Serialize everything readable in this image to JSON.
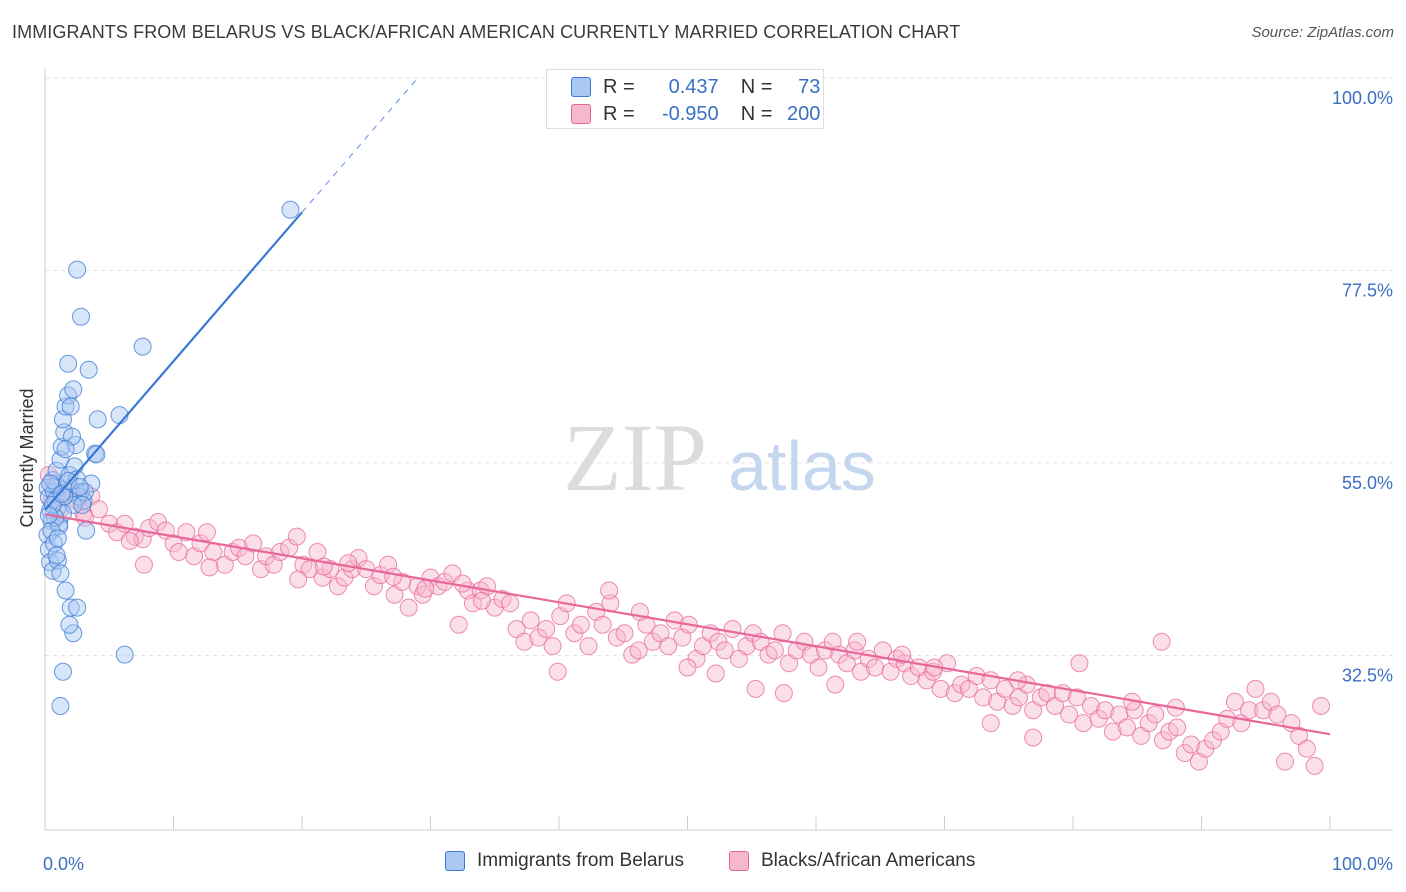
{
  "header": {
    "title": "IMMIGRANTS FROM BELARUS VS BLACK/AFRICAN AMERICAN CURRENTLY MARRIED CORRELATION CHART",
    "source": "Source: ZipAtlas.com"
  },
  "watermark": {
    "part1": "ZIP",
    "part2": "atlas"
  },
  "stats": [
    {
      "r_label": "R =",
      "r_value": "0.437",
      "n_label": "N =",
      "n_value": "73"
    },
    {
      "r_label": "R =",
      "r_value": "-0.950",
      "n_label": "N =",
      "n_value": "200"
    }
  ],
  "legend": {
    "series1": "Immigrants from Belarus",
    "series2": "Blacks/African Americans"
  },
  "chart_data": {
    "type": "scatter",
    "title": "IMMIGRANTS FROM BELARUS VS BLACK/AFRICAN AMERICAN CURRENTLY MARRIED CORRELATION CHART",
    "xlabel": "",
    "ylabel": "Currently Married",
    "xlim": [
      0,
      100
    ],
    "ylim": [
      10,
      102
    ],
    "x_tick_labels": [
      "0.0%",
      "100.0%"
    ],
    "y_tick_labels": [
      "100.0%",
      "77.5%",
      "55.0%",
      "32.5%"
    ],
    "y_ticks": [
      100,
      77.5,
      55,
      32.5
    ],
    "grid": true,
    "legend_position": "bottom",
    "colors": {
      "blue": "#3a78d6",
      "blue_fill": "#a9c8f2",
      "pink": "#e8679a",
      "pink_fill": "#f6b8cd",
      "tick_label": "#3b6fc4"
    },
    "series": [
      {
        "name": "Immigrants from Belarus",
        "trend": {
          "x1": 0.0,
          "y1": 49.5,
          "x2": 20.0,
          "y2": 84.3,
          "dash_x2": 29.0,
          "dash_y2": 100.0
        },
        "points": [
          [
            0.2,
            52.1
          ],
          [
            0.3,
            51.0
          ],
          [
            0.4,
            49.5
          ],
          [
            0.5,
            48.2
          ],
          [
            0.2,
            46.6
          ],
          [
            0.3,
            44.9
          ],
          [
            0.4,
            43.4
          ],
          [
            0.6,
            42.4
          ],
          [
            0.7,
            51.6
          ],
          [
            0.8,
            50.6
          ],
          [
            0.9,
            52.4
          ],
          [
            1.0,
            49.8
          ],
          [
            1.1,
            47.9
          ],
          [
            0.6,
            53.0
          ],
          [
            0.9,
            54.1
          ],
          [
            1.2,
            55.4
          ],
          [
            1.3,
            56.9
          ],
          [
            1.5,
            58.6
          ],
          [
            1.4,
            60.1
          ],
          [
            1.6,
            61.6
          ],
          [
            1.8,
            62.9
          ],
          [
            2.0,
            61.6
          ],
          [
            2.2,
            63.6
          ],
          [
            1.7,
            52.6
          ],
          [
            1.9,
            53.6
          ],
          [
            2.1,
            51.6
          ],
          [
            2.3,
            54.6
          ],
          [
            2.5,
            53.1
          ],
          [
            2.8,
            51.6
          ],
          [
            3.0,
            50.6
          ],
          [
            3.2,
            47.1
          ],
          [
            2.4,
            57.1
          ],
          [
            2.1,
            58.1
          ],
          [
            1.8,
            66.6
          ],
          [
            2.5,
            77.6
          ],
          [
            2.8,
            72.1
          ],
          [
            3.4,
            65.9
          ],
          [
            3.9,
            56.1
          ],
          [
            4.1,
            60.1
          ],
          [
            5.8,
            60.6
          ],
          [
            3.6,
            52.6
          ],
          [
            2.6,
            51.1
          ],
          [
            2.2,
            50.1
          ],
          [
            1.4,
            49.1
          ],
          [
            1.1,
            47.6
          ],
          [
            0.8,
            48.6
          ],
          [
            0.5,
            47.1
          ],
          [
            0.7,
            45.6
          ],
          [
            1.0,
            43.6
          ],
          [
            1.2,
            42.1
          ],
          [
            1.6,
            40.1
          ],
          [
            2.0,
            38.1
          ],
          [
            2.2,
            35.1
          ],
          [
            2.5,
            38.1
          ],
          [
            1.9,
            36.1
          ],
          [
            1.4,
            30.6
          ],
          [
            1.2,
            26.6
          ],
          [
            6.2,
            32.6
          ],
          [
            7.6,
            68.6
          ],
          [
            19.1,
            84.6
          ],
          [
            3.1,
            51.6
          ],
          [
            1.5,
            51.1
          ],
          [
            2.9,
            50.1
          ],
          [
            0.4,
            52.6
          ],
          [
            0.6,
            50.1
          ],
          [
            1.3,
            51.4
          ],
          [
            1.8,
            52.9
          ],
          [
            1.0,
            46.2
          ],
          [
            0.9,
            44.2
          ],
          [
            2.7,
            52.2
          ],
          [
            0.3,
            48.9
          ],
          [
            1.6,
            56.6
          ],
          [
            4.0,
            56.0
          ]
        ]
      },
      {
        "name": "Blacks/African Americans",
        "trend": {
          "x1": 0.0,
          "y1": 49.0,
          "x2": 100.0,
          "y2": 23.3
        },
        "points": [
          [
            0.3,
            53.6
          ],
          [
            0.5,
            50.6
          ],
          [
            0.8,
            52.6
          ],
          [
            1.2,
            49.6
          ],
          [
            1.5,
            51.1
          ],
          [
            2.0,
            52.1
          ],
          [
            2.5,
            50.6
          ],
          [
            3.0,
            49.1
          ],
          [
            3.6,
            51.1
          ],
          [
            4.2,
            49.6
          ],
          [
            5.0,
            47.9
          ],
          [
            5.6,
            46.9
          ],
          [
            6.2,
            47.9
          ],
          [
            7.0,
            46.4
          ],
          [
            7.6,
            46.1
          ],
          [
            8.1,
            47.4
          ],
          [
            8.8,
            48.1
          ],
          [
            9.4,
            47.1
          ],
          [
            10.0,
            45.6
          ],
          [
            11.0,
            46.9
          ],
          [
            11.6,
            44.1
          ],
          [
            12.1,
            45.6
          ],
          [
            12.6,
            46.9
          ],
          [
            13.1,
            44.6
          ],
          [
            14.0,
            43.1
          ],
          [
            14.6,
            44.6
          ],
          [
            15.1,
            45.1
          ],
          [
            15.6,
            44.1
          ],
          [
            16.2,
            45.6
          ],
          [
            16.8,
            42.6
          ],
          [
            17.2,
            44.1
          ],
          [
            17.8,
            43.1
          ],
          [
            18.3,
            44.6
          ],
          [
            19.0,
            45.1
          ],
          [
            19.6,
            46.4
          ],
          [
            20.1,
            43.1
          ],
          [
            20.6,
            42.6
          ],
          [
            21.2,
            44.6
          ],
          [
            21.6,
            41.6
          ],
          [
            22.2,
            42.6
          ],
          [
            22.8,
            40.6
          ],
          [
            23.3,
            41.6
          ],
          [
            23.9,
            42.6
          ],
          [
            24.4,
            43.9
          ],
          [
            25.0,
            42.6
          ],
          [
            25.6,
            40.6
          ],
          [
            26.1,
            41.9
          ],
          [
            26.7,
            43.1
          ],
          [
            27.2,
            39.6
          ],
          [
            27.8,
            41.1
          ],
          [
            28.3,
            38.1
          ],
          [
            29.0,
            40.6
          ],
          [
            29.4,
            39.6
          ],
          [
            30.0,
            41.6
          ],
          [
            30.6,
            40.6
          ],
          [
            31.1,
            41.1
          ],
          [
            31.7,
            42.1
          ],
          [
            32.2,
            36.1
          ],
          [
            32.9,
            40.1
          ],
          [
            33.3,
            38.6
          ],
          [
            33.9,
            40.1
          ],
          [
            34.4,
            40.6
          ],
          [
            35.0,
            38.1
          ],
          [
            35.6,
            39.1
          ],
          [
            36.2,
            38.6
          ],
          [
            36.7,
            35.6
          ],
          [
            37.3,
            34.1
          ],
          [
            37.8,
            36.6
          ],
          [
            38.4,
            34.6
          ],
          [
            39.0,
            35.6
          ],
          [
            39.5,
            33.6
          ],
          [
            40.1,
            37.1
          ],
          [
            40.6,
            38.6
          ],
          [
            41.2,
            35.1
          ],
          [
            41.7,
            36.1
          ],
          [
            42.3,
            33.6
          ],
          [
            42.9,
            37.6
          ],
          [
            43.4,
            36.1
          ],
          [
            44.0,
            38.6
          ],
          [
            44.5,
            34.6
          ],
          [
            45.1,
            35.1
          ],
          [
            45.7,
            32.6
          ],
          [
            46.2,
            33.1
          ],
          [
            46.8,
            36.1
          ],
          [
            47.3,
            34.1
          ],
          [
            47.9,
            35.1
          ],
          [
            48.5,
            33.6
          ],
          [
            49.0,
            36.6
          ],
          [
            49.6,
            34.6
          ],
          [
            50.1,
            36.1
          ],
          [
            50.7,
            32.1
          ],
          [
            51.2,
            33.6
          ],
          [
            51.8,
            35.1
          ],
          [
            52.4,
            34.1
          ],
          [
            52.9,
            33.1
          ],
          [
            53.5,
            35.6
          ],
          [
            54.0,
            32.1
          ],
          [
            54.6,
            33.6
          ],
          [
            55.1,
            35.1
          ],
          [
            55.7,
            34.1
          ],
          [
            56.3,
            32.6
          ],
          [
            56.8,
            33.1
          ],
          [
            57.4,
            35.1
          ],
          [
            57.9,
            31.6
          ],
          [
            58.5,
            33.1
          ],
          [
            59.1,
            34.1
          ],
          [
            59.6,
            32.6
          ],
          [
            60.2,
            31.1
          ],
          [
            60.7,
            33.1
          ],
          [
            61.3,
            34.1
          ],
          [
            61.8,
            32.6
          ],
          [
            62.4,
            31.6
          ],
          [
            63.0,
            33.1
          ],
          [
            63.5,
            30.6
          ],
          [
            64.1,
            32.1
          ],
          [
            64.6,
            31.1
          ],
          [
            65.2,
            33.1
          ],
          [
            65.8,
            30.6
          ],
          [
            66.3,
            32.1
          ],
          [
            66.9,
            31.6
          ],
          [
            67.4,
            30.1
          ],
          [
            68.0,
            31.1
          ],
          [
            68.6,
            29.6
          ],
          [
            69.1,
            30.6
          ],
          [
            69.7,
            28.6
          ],
          [
            70.2,
            31.6
          ],
          [
            70.8,
            28.1
          ],
          [
            71.3,
            29.1
          ],
          [
            71.9,
            28.6
          ],
          [
            72.5,
            30.1
          ],
          [
            73.0,
            27.6
          ],
          [
            73.6,
            29.6
          ],
          [
            74.1,
            27.1
          ],
          [
            74.7,
            28.6
          ],
          [
            75.3,
            26.6
          ],
          [
            75.8,
            27.6
          ],
          [
            76.4,
            29.1
          ],
          [
            76.9,
            26.1
          ],
          [
            77.5,
            27.6
          ],
          [
            78.0,
            28.1
          ],
          [
            78.6,
            26.6
          ],
          [
            79.2,
            28.1
          ],
          [
            79.7,
            25.6
          ],
          [
            80.3,
            27.6
          ],
          [
            80.8,
            24.6
          ],
          [
            81.4,
            26.6
          ],
          [
            82.0,
            25.1
          ],
          [
            82.5,
            26.1
          ],
          [
            83.1,
            23.6
          ],
          [
            83.6,
            25.6
          ],
          [
            84.2,
            24.1
          ],
          [
            84.8,
            26.1
          ],
          [
            85.3,
            23.1
          ],
          [
            85.9,
            24.6
          ],
          [
            86.4,
            25.6
          ],
          [
            87.0,
            22.6
          ],
          [
            87.5,
            23.6
          ],
          [
            88.1,
            24.1
          ],
          [
            88.7,
            21.1
          ],
          [
            89.2,
            22.1
          ],
          [
            89.8,
            20.1
          ],
          [
            90.3,
            21.6
          ],
          [
            90.9,
            22.6
          ],
          [
            91.5,
            23.6
          ],
          [
            92.0,
            25.1
          ],
          [
            92.6,
            27.1
          ],
          [
            93.1,
            24.6
          ],
          [
            93.7,
            26.1
          ],
          [
            94.2,
            28.6
          ],
          [
            94.8,
            26.1
          ],
          [
            95.4,
            27.1
          ],
          [
            95.9,
            25.6
          ],
          [
            96.5,
            20.1
          ],
          [
            97.0,
            24.6
          ],
          [
            97.6,
            23.1
          ],
          [
            98.2,
            21.6
          ],
          [
            98.8,
            19.6
          ],
          [
            99.3,
            26.6
          ],
          [
            46.3,
            37.6
          ],
          [
            63.2,
            34.1
          ],
          [
            80.5,
            31.6
          ],
          [
            84.6,
            27.1
          ],
          [
            55.3,
            28.6
          ],
          [
            73.6,
            24.6
          ],
          [
            61.5,
            29.1
          ],
          [
            69.2,
            31.1
          ],
          [
            66.7,
            32.6
          ],
          [
            75.7,
            29.6
          ],
          [
            86.9,
            34.1
          ],
          [
            50.0,
            31.1
          ],
          [
            52.2,
            30.4
          ],
          [
            57.5,
            28.1
          ],
          [
            88.0,
            26.4
          ],
          [
            76.9,
            22.9
          ],
          [
            39.9,
            30.6
          ],
          [
            34.0,
            38.9
          ],
          [
            29.6,
            40.3
          ],
          [
            12.8,
            42.8
          ],
          [
            7.7,
            43.1
          ],
          [
            23.6,
            43.3
          ],
          [
            19.7,
            41.4
          ],
          [
            27.1,
            41.7
          ],
          [
            43.9,
            40.1
          ],
          [
            32.5,
            40.9
          ],
          [
            21.7,
            42.9
          ],
          [
            10.4,
            44.6
          ],
          [
            6.6,
            45.9
          ],
          [
            3.1,
            48.6
          ]
        ]
      }
    ]
  }
}
